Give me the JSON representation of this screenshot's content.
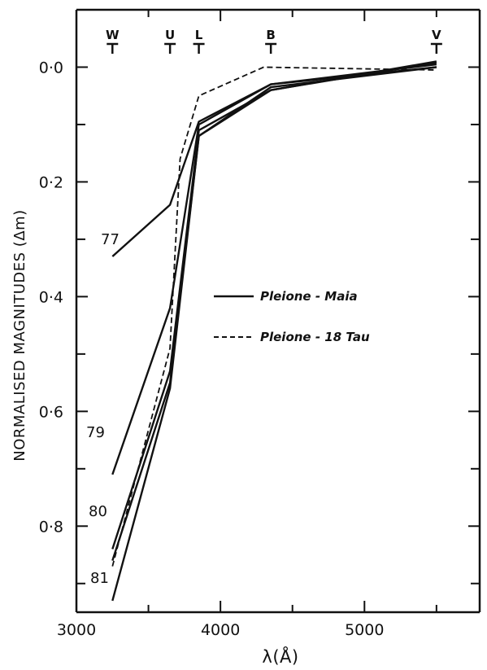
{
  "chart_data": {
    "type": "line",
    "xlabel": "λ(Å)",
    "ylabel": "NORMALISED MAGNITUDES (Δm)",
    "xlim": [
      3000,
      5800
    ],
    "ylim": [
      -0.1,
      0.95
    ],
    "y_inverted": true,
    "x_ticks": [
      3000,
      4000,
      5000
    ],
    "x_tick_labels": [
      "3000",
      "4000",
      "5000"
    ],
    "y_ticks": [
      0.0,
      0.2,
      0.4,
      0.6,
      0.8
    ],
    "y_tick_labels": [
      "0·0",
      "0·2",
      "0·4",
      "0·6",
      "0·8"
    ],
    "minor_ticks": "both axes, mirrored on top and right",
    "grid": false,
    "band_markers": [
      {
        "label": "W",
        "x": 3250
      },
      {
        "label": "U",
        "x": 3650
      },
      {
        "label": "L",
        "x": 3850
      },
      {
        "label": "B",
        "x": 4350
      },
      {
        "label": "V",
        "x": 5500
      }
    ],
    "legend": {
      "placement": "center-right",
      "entries": [
        {
          "label": "Pleione - Maia",
          "style": "solid"
        },
        {
          "label": "Pleione - 18 Tau",
          "style": "dashed"
        }
      ]
    },
    "series": [
      {
        "label": "77",
        "comparison": "Pleione - Maia",
        "style": "solid",
        "x": [
          3250,
          3650,
          3850,
          4350,
          5500
        ],
        "y": [
          0.33,
          0.24,
          0.095,
          0.03,
          0.0
        ]
      },
      {
        "label": "79",
        "comparison": "Pleione - Maia",
        "style": "solid",
        "x": [
          3250,
          3650,
          3850,
          4350,
          5500
        ],
        "y": [
          0.71,
          0.42,
          0.1,
          0.03,
          -0.005
        ]
      },
      {
        "label": "80",
        "comparison": "Pleione - Maia",
        "style": "solid",
        "x": [
          3250,
          3650,
          3850,
          4350,
          5500
        ],
        "y": [
          0.84,
          0.53,
          0.11,
          0.04,
          -0.008
        ]
      },
      {
        "label": "",
        "comparison": "Pleione - Maia",
        "style": "solid",
        "x": [
          3250,
          3650,
          3850,
          4350,
          5500
        ],
        "y": [
          0.86,
          0.55,
          0.12,
          0.04,
          -0.01
        ]
      },
      {
        "label": "81",
        "comparison": "Pleione - Maia",
        "style": "solid",
        "x": [
          3250,
          3650,
          3850,
          4350,
          5500
        ],
        "y": [
          0.93,
          0.56,
          0.12,
          0.035,
          0.0
        ]
      },
      {
        "label": "",
        "comparison": "Pleione - 18 Tau",
        "style": "dashed",
        "x": [
          3250,
          3650,
          3720,
          3850,
          4300,
          5500
        ],
        "y": [
          0.87,
          0.49,
          0.16,
          0.05,
          0.0,
          0.005
        ]
      }
    ]
  }
}
